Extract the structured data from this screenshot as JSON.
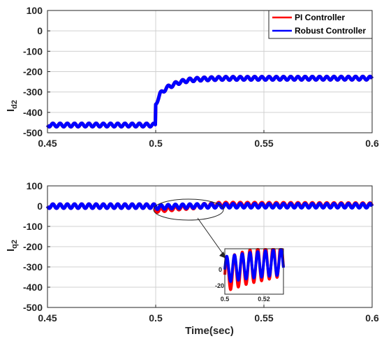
{
  "colors": {
    "pi": "#ff0000",
    "robust": "#0000ff",
    "grid": "#d0d0d0",
    "axis": "#262626"
  },
  "chart_data": [
    {
      "type": "line",
      "ylabel_main": "I",
      "ylabel_sub": "d2",
      "xlabel": "",
      "xlim": [
        0.45,
        0.6
      ],
      "ylim": [
        -500,
        100
      ],
      "xticks": [
        "0.45",
        "0.5",
        "0.55",
        "0.6"
      ],
      "yticks": [
        "100",
        "0",
        "-100",
        "-200",
        "-300",
        "-400",
        "-500"
      ],
      "grid": true,
      "legend": "top-right",
      "series": [
        {
          "name": "PI Controller",
          "color": "#ff0000",
          "x": [
            0.45,
            0.4999,
            0.5,
            0.502,
            0.505,
            0.51,
            0.515,
            0.52,
            0.53,
            0.6
          ],
          "y": [
            -462,
            -462,
            -360,
            -310,
            -280,
            -255,
            -242,
            -237,
            -233,
            -232
          ]
        },
        {
          "name": "Robust Controller",
          "color": "#0000ff",
          "x": [
            0.45,
            0.4999,
            0.5,
            0.502,
            0.505,
            0.51,
            0.515,
            0.52,
            0.53,
            0.6
          ],
          "y": [
            -462,
            -462,
            -360,
            -310,
            -280,
            -255,
            -242,
            -237,
            -233,
            -232
          ]
        }
      ],
      "legend_entries": [
        "PI Controller",
        "Robust Controller"
      ]
    },
    {
      "type": "line",
      "ylabel_main": "I",
      "ylabel_sub": "q2",
      "xlabel": "Time(sec)",
      "xlim": [
        0.45,
        0.6
      ],
      "ylim": [
        -500,
        100
      ],
      "xticks": [
        "0.45",
        "0.5",
        "0.55",
        "0.6"
      ],
      "yticks": [
        "100",
        "0",
        "-100",
        "-200",
        "-300",
        "-400",
        "-500"
      ],
      "grid": true,
      "series": [
        {
          "name": "PI Controller",
          "color": "#ff0000",
          "x": [
            0.45,
            0.4999,
            0.5,
            0.505,
            0.51,
            0.52,
            0.53,
            0.6
          ],
          "y": [
            0,
            0,
            -20,
            -14,
            -8,
            0,
            8,
            5
          ]
        },
        {
          "name": "Robust Controller",
          "color": "#0000ff",
          "x": [
            0.45,
            0.4999,
            0.5,
            0.505,
            0.51,
            0.52,
            0.53,
            0.6
          ],
          "y": [
            0,
            0,
            -5,
            -3,
            -1,
            1,
            2,
            2
          ]
        }
      ],
      "inset": {
        "xlim": [
          0.5,
          0.525
        ],
        "ylim": [
          -25,
          10
        ],
        "xticks": [
          "0.5",
          "0.52"
        ],
        "yticks": [
          "0",
          "-20"
        ]
      }
    }
  ]
}
